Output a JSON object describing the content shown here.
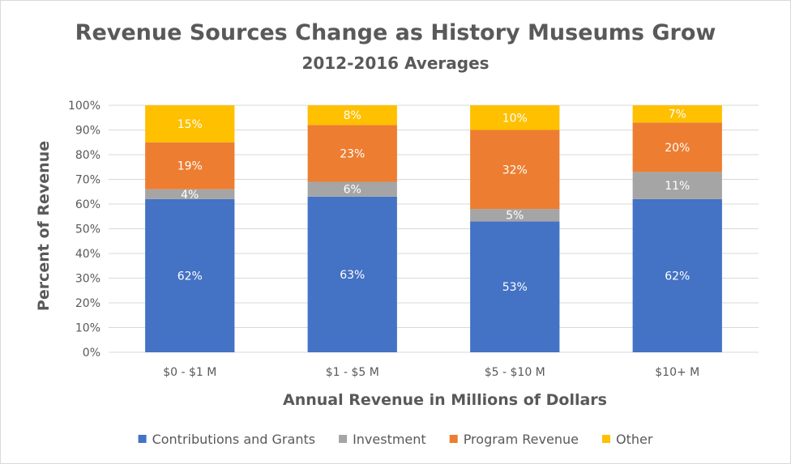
{
  "chart_data": {
    "type": "bar",
    "stacked": true,
    "title": "Revenue Sources Change as History Museums Grow",
    "subtitle": "2012-2016 Averages",
    "xlabel": "Annual Revenue in Millions of Dollars",
    "ylabel": "Percent of Revenue",
    "ylim": [
      0,
      100
    ],
    "y_ticks": [
      "0%",
      "10%",
      "20%",
      "30%",
      "40%",
      "50%",
      "60%",
      "70%",
      "80%",
      "90%",
      "100%"
    ],
    "grid": true,
    "legend_position": "bottom",
    "categories": [
      "$0 - $1 M",
      "$1 - $5 M",
      "$5 - $10 M",
      "$10+ M"
    ],
    "series": [
      {
        "name": "Contributions and Grants",
        "color": "#4472c4",
        "values": [
          62,
          63,
          53,
          62
        ],
        "labels": [
          "62%",
          "63%",
          "53%",
          "62%"
        ]
      },
      {
        "name": "Investment",
        "color": "#a5a5a5",
        "values": [
          4,
          6,
          5,
          11
        ],
        "labels": [
          "4%",
          "6%",
          "5%",
          "11%"
        ]
      },
      {
        "name": "Program Revenue",
        "color": "#ed7d31",
        "values": [
          19,
          23,
          32,
          20
        ],
        "labels": [
          "19%",
          "23%",
          "32%",
          "20%"
        ]
      },
      {
        "name": "Other",
        "color": "#ffc000",
        "values": [
          15,
          8,
          10,
          7
        ],
        "labels": [
          "15%",
          "8%",
          "10%",
          "7%"
        ]
      }
    ]
  }
}
